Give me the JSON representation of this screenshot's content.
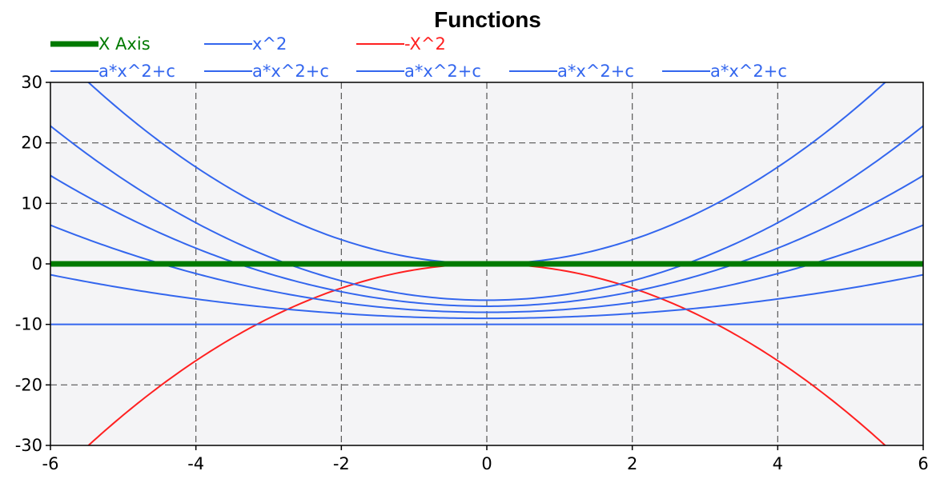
{
  "chart_data": {
    "type": "line",
    "title": "Functions",
    "xlabel": "",
    "ylabel": "",
    "xlim": [
      -6,
      6
    ],
    "ylim": [
      -30,
      30
    ],
    "x_ticks": [
      -6,
      -4,
      -2,
      0,
      2,
      4,
      6
    ],
    "y_ticks": [
      -30,
      -20,
      -10,
      0,
      10,
      20,
      30
    ],
    "grid": true,
    "legend_position": "top",
    "series": [
      {
        "name": "X Axis",
        "color": "#007a00",
        "formula": "y = 0",
        "x": [
          -6,
          6
        ],
        "values": [
          0,
          0
        ]
      },
      {
        "name": "x^2",
        "color": "#3366ee",
        "formula": "y = x^2",
        "x": [
          -6,
          -5.5,
          -4,
          -2,
          0,
          2,
          4,
          5.5,
          6
        ],
        "values": [
          36,
          30.25,
          16,
          4,
          0,
          4,
          16,
          30.25,
          36
        ]
      },
      {
        "name": "-X^2",
        "color": "#ff2020",
        "formula": "y = -x^2",
        "x": [
          -6,
          -5.5,
          -4,
          -2,
          0,
          2,
          4,
          5.5,
          6
        ],
        "values": [
          -36,
          -30.25,
          -16,
          -4,
          0,
          -4,
          -16,
          -30.25,
          -36
        ]
      },
      {
        "name": "a*x^2+c",
        "color": "#3366ee",
        "a": 0.8,
        "c": -6,
        "x": [
          -6,
          -4,
          -2,
          0,
          2,
          4,
          6
        ],
        "values": [
          22.8,
          6.8,
          -2.8,
          -6,
          -2.8,
          6.8,
          22.8
        ]
      },
      {
        "name": "a*x^2+c",
        "color": "#3366ee",
        "a": 0.6,
        "c": -7,
        "x": [
          -6,
          -4,
          -2,
          0,
          2,
          4,
          6
        ],
        "values": [
          14.6,
          2.6,
          -4.6,
          -7,
          -4.6,
          2.6,
          14.6
        ]
      },
      {
        "name": "a*x^2+c",
        "color": "#3366ee",
        "a": 0.4,
        "c": -8,
        "x": [
          -6,
          -4,
          -2,
          0,
          2,
          4,
          6
        ],
        "values": [
          6.4,
          -1.6,
          -6.4,
          -8,
          -6.4,
          -1.6,
          6.4
        ]
      },
      {
        "name": "a*x^2+c",
        "color": "#3366ee",
        "a": 0.2,
        "c": -9,
        "x": [
          -6,
          -4,
          -2,
          0,
          2,
          4,
          6
        ],
        "values": [
          -1.8,
          -5.8,
          -8.2,
          -9,
          -8.2,
          -5.8,
          -1.8
        ]
      },
      {
        "name": "a*x^2+c",
        "color": "#3366ee",
        "a": 0,
        "c": -10,
        "x": [
          -6,
          -4,
          -2,
          0,
          2,
          4,
          6
        ],
        "values": [
          -10,
          -10,
          -10,
          -10,
          -10,
          -10,
          -10
        ]
      }
    ]
  }
}
